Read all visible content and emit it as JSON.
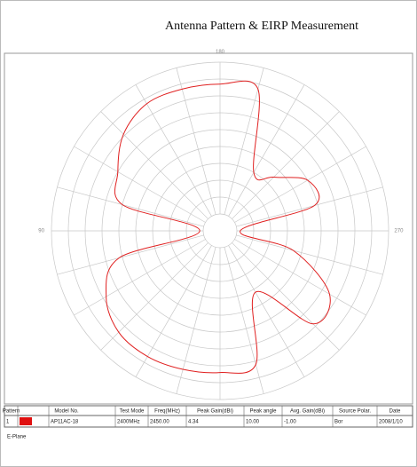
{
  "chart_data": {
    "type": "polar",
    "title": "Antenna Pattern & EIRP Measurement",
    "theta": [
      0,
      15,
      30,
      45,
      60,
      75,
      90,
      105,
      120,
      135,
      150,
      165,
      180,
      195,
      210,
      225,
      240,
      255,
      270,
      285,
      300,
      315,
      330,
      345
    ],
    "r": [
      0.84,
      0.85,
      0.86,
      0.85,
      0.78,
      0.62,
      0.12,
      0.6,
      0.7,
      0.81,
      0.87,
      0.87,
      0.87,
      0.87,
      0.4,
      0.45,
      0.6,
      0.58,
      0.12,
      0.45,
      0.75,
      0.78,
      0.42,
      0.82
    ],
    "rlim": [
      0,
      1
    ],
    "thetaticks": [
      90,
      180,
      270
    ],
    "color": "#e02020"
  },
  "table": {
    "header": [
      "Pattern",
      "Model No.",
      "Test Mode",
      "Freq(MHz)",
      "Peak Gain(dBi)",
      "Peak angle",
      "Avg. Gain(dBi)",
      "Source Polar.",
      "Date"
    ],
    "row": [
      "1",
      "AP11AC-18",
      "2400MHz",
      "2450.00",
      "4.34",
      "10.00",
      "-1.00",
      "Bor",
      "2008/1/10"
    ]
  },
  "footer": "E-Plane"
}
